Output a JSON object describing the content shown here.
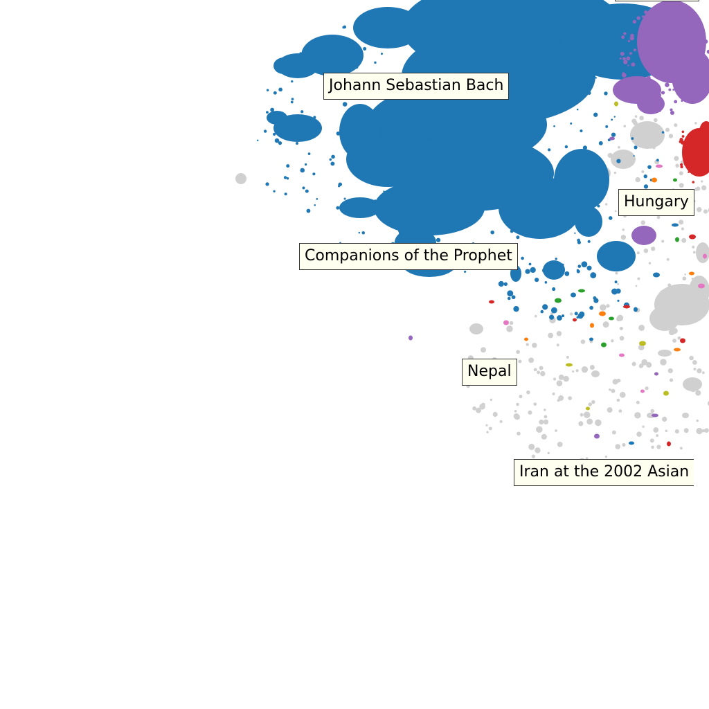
{
  "map": {
    "background": "#ffffff",
    "colors": {
      "blue": "#1f77b4",
      "purple": "#9467bd",
      "red": "#d62728",
      "orange": "#ff7f0e",
      "green": "#2ca02c",
      "pink": "#e377c2",
      "olive": "#bcbd22",
      "gray": "#d0d0d0",
      "label_bg": "#fffff0",
      "label_border": "#333333"
    },
    "labels": {
      "bach": "Johann Sebastian Bach",
      "hungary": "Hungary",
      "companions": "Companions of the Prophet",
      "nepal": "Nepal",
      "iran": "Iran at the 2002 Asian"
    }
  }
}
